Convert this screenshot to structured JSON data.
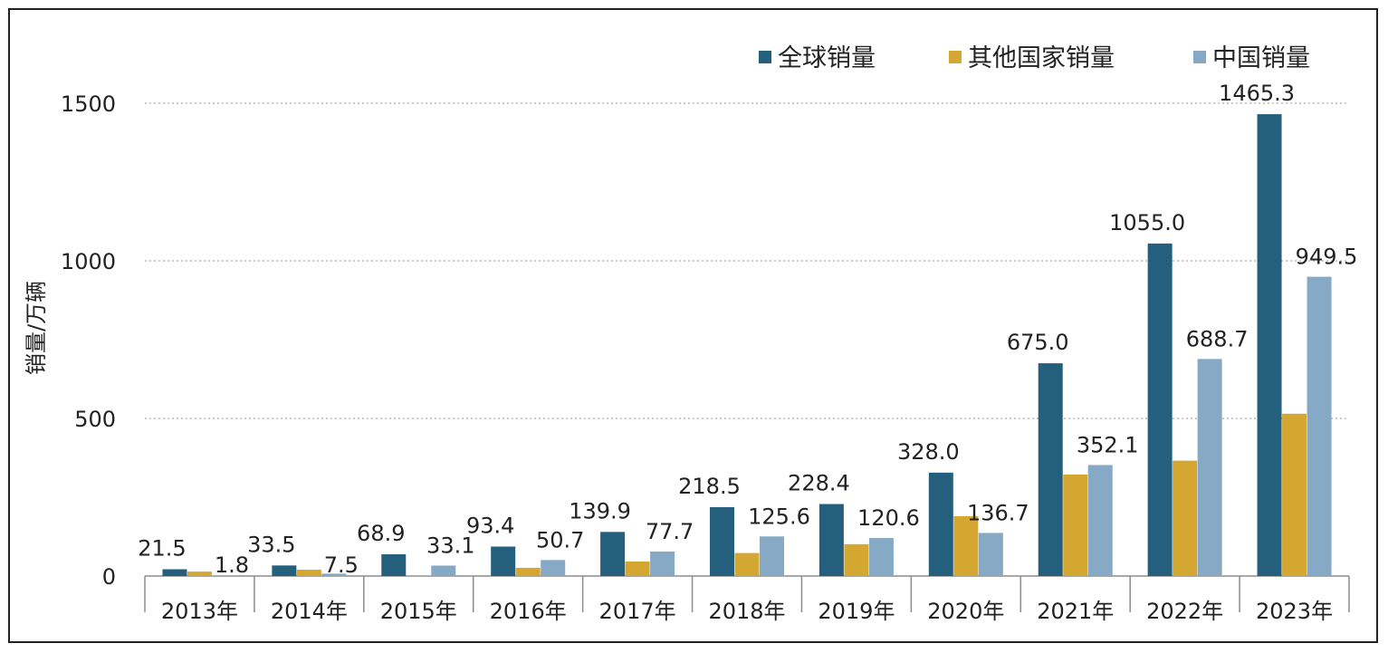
{
  "chart_data": {
    "type": "bar",
    "title": "",
    "ylabel": "销量/万辆",
    "xlabel": "",
    "ylim": [
      0,
      1500
    ],
    "yticks": [
      0,
      500,
      1000,
      1500
    ],
    "grid": true,
    "legend_position": "top-right",
    "categories": [
      "2013年",
      "2014年",
      "2015年",
      "2016年",
      "2017年",
      "2018年",
      "2019年",
      "2020年",
      "2021年",
      "2022年",
      "2023年"
    ],
    "series": [
      {
        "name": "全球销量",
        "color": "#245f7e",
        "values": [
          21.5,
          33.5,
          68.9,
          93.4,
          139.9,
          218.5,
          228.4,
          328.0,
          675.0,
          1055.0,
          1465.3
        ],
        "labels": [
          "21.5",
          "33.5",
          "68.9",
          "93.4",
          "139.9",
          "218.5",
          "228.4",
          "328.0",
          "675.0",
          "1055.0",
          "1465.3"
        ]
      },
      {
        "name": "其他国家销量",
        "color": "#d4a733",
        "values": [
          14,
          20,
          2,
          26,
          46,
          73,
          101,
          190,
          322,
          366,
          515
        ],
        "labels": [
          "",
          "",
          "",
          "",
          "",
          "",
          "",
          "",
          "",
          "",
          ""
        ]
      },
      {
        "name": "中国销量",
        "color": "#86a9c5",
        "values": [
          1.8,
          7.5,
          33.1,
          50.7,
          77.7,
          125.6,
          120.6,
          136.7,
          352.1,
          688.7,
          949.5
        ],
        "labels": [
          "1.8",
          "7.5",
          "33.1",
          "50.7",
          "77.7",
          "125.6",
          "120.6",
          "136.7",
          "352.1",
          "688.7",
          "949.5"
        ]
      }
    ]
  }
}
